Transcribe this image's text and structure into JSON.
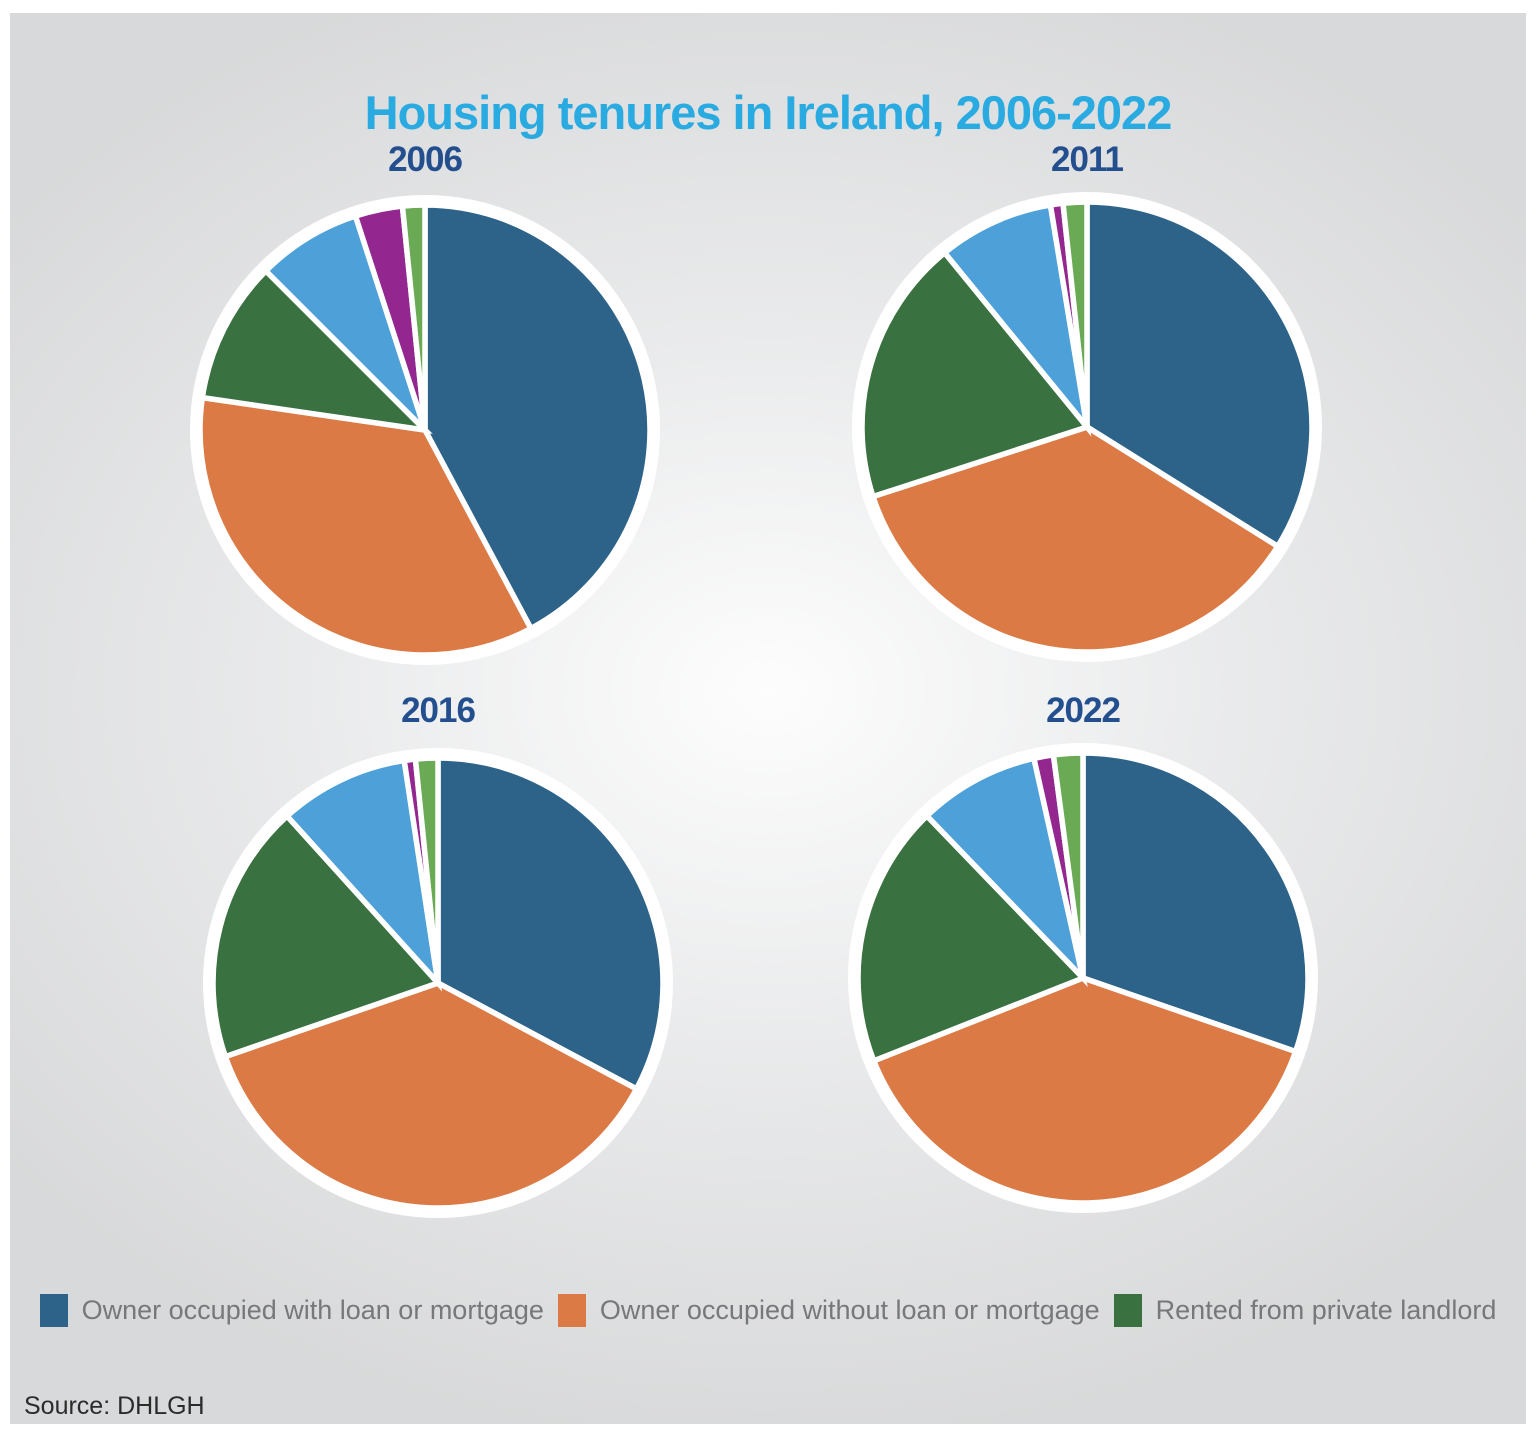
{
  "title": {
    "text": "Housing tenures in Ireland, 2006-2022",
    "color": "#29abe2"
  },
  "source": {
    "text": "Source: DHLGH"
  },
  "colors": {
    "owner_with_mortgage_blue": "#2e6389",
    "owner_without_mortgage_orange": "#dc7a45",
    "private_rented_green": "#3a7140",
    "light_blue": "#4da0d8",
    "purple": "#93278f",
    "light_green": "#6aaa55",
    "title_blue": "#29abe2",
    "year_navy": "#234f8e",
    "legend_text_gray": "#77787b",
    "panel_edge_gray": "#d8d9da",
    "panel_center": "#fdfdfd"
  },
  "legend": {
    "items": [
      {
        "label": "Owner occupied with loan or mortgage",
        "color": "#2e6389"
      },
      {
        "label": "Owner occupied without loan or mortgage",
        "color": "#dc7a45"
      },
      {
        "label": "Rented from private landlord",
        "color": "#3a7140"
      }
    ]
  },
  "chart_data": [
    {
      "type": "pie",
      "title": "2006",
      "unit": "percent",
      "start_angle_deg": 0,
      "direction": "clockwise",
      "slices": [
        {
          "label": "Owner occupied with loan or mortgage",
          "color": "#2e6389",
          "value": 42.2
        },
        {
          "label": "Owner occupied without loan or mortgage",
          "color": "#dc7a45",
          "value": 35.1
        },
        {
          "label": "Rented from private landlord",
          "color": "#3a7140",
          "value": 10.2
        },
        {
          "label": "Unlabelled (light blue)",
          "color": "#4da0d8",
          "value": 7.5
        },
        {
          "label": "Unlabelled (purple)",
          "color": "#93278f",
          "value": 3.4
        },
        {
          "label": "Unlabelled (light green)",
          "color": "#6aaa55",
          "value": 1.6
        }
      ]
    },
    {
      "type": "pie",
      "title": "2011",
      "unit": "percent",
      "start_angle_deg": 0,
      "direction": "clockwise",
      "slices": [
        {
          "label": "Owner occupied with loan or mortgage",
          "color": "#2e6389",
          "value": 33.9
        },
        {
          "label": "Owner occupied without loan or mortgage",
          "color": "#dc7a45",
          "value": 36.1
        },
        {
          "label": "Rented from private landlord",
          "color": "#3a7140",
          "value": 19.1
        },
        {
          "label": "Unlabelled (light blue)",
          "color": "#4da0d8",
          "value": 8.3
        },
        {
          "label": "Unlabelled (purple)",
          "color": "#93278f",
          "value": 0.9
        },
        {
          "label": "Unlabelled (light green)",
          "color": "#6aaa55",
          "value": 1.7
        }
      ]
    },
    {
      "type": "pie",
      "title": "2016",
      "unit": "percent",
      "start_angle_deg": 0,
      "direction": "clockwise",
      "slices": [
        {
          "label": "Owner occupied with loan or mortgage",
          "color": "#2e6389",
          "value": 32.8
        },
        {
          "label": "Owner occupied without loan or mortgage",
          "color": "#dc7a45",
          "value": 36.9
        },
        {
          "label": "Rented from private landlord",
          "color": "#3a7140",
          "value": 18.6
        },
        {
          "label": "Unlabelled (light blue)",
          "color": "#4da0d8",
          "value": 9.3
        },
        {
          "label": "Unlabelled (purple)",
          "color": "#93278f",
          "value": 0.8
        },
        {
          "label": "Unlabelled (light green)",
          "color": "#6aaa55",
          "value": 1.6
        }
      ]
    },
    {
      "type": "pie",
      "title": "2022",
      "unit": "percent",
      "start_angle_deg": 0,
      "direction": "clockwise",
      "slices": [
        {
          "label": "Owner occupied with loan or mortgage",
          "color": "#2e6389",
          "value": 30.3
        },
        {
          "label": "Owner occupied without loan or mortgage",
          "color": "#dc7a45",
          "value": 38.7
        },
        {
          "label": "Rented from private landlord",
          "color": "#3a7140",
          "value": 18.8
        },
        {
          "label": "Unlabelled (light blue)",
          "color": "#4da0d8",
          "value": 8.7
        },
        {
          "label": "Unlabelled (purple)",
          "color": "#93278f",
          "value": 1.4
        },
        {
          "label": "Unlabelled (light green)",
          "color": "#6aaa55",
          "value": 2.1
        }
      ]
    }
  ]
}
